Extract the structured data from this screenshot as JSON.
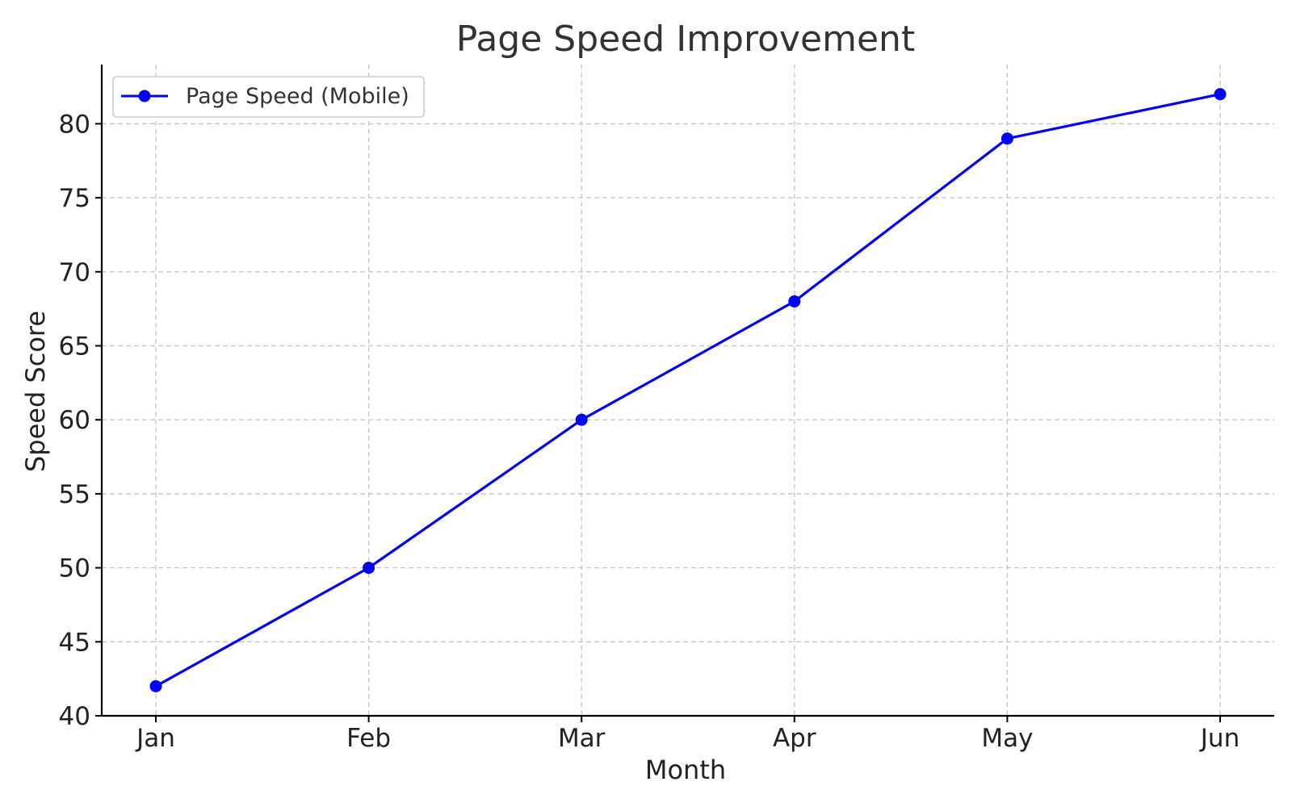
{
  "chart_data": {
    "type": "line",
    "title": "Page Speed Improvement",
    "xlabel": "Month",
    "ylabel": "Speed Score",
    "categories": [
      "Jan",
      "Feb",
      "Mar",
      "Apr",
      "May",
      "Jun"
    ],
    "series": [
      {
        "name": "Page Speed (Mobile)",
        "values": [
          42,
          50,
          60,
          68,
          79,
          82
        ],
        "color": "#0000ff",
        "marker": "circle"
      }
    ],
    "ylim": [
      40,
      84
    ],
    "yticks": [
      40,
      45,
      50,
      55,
      60,
      65,
      70,
      75,
      80
    ],
    "grid": true,
    "legend_position": "top-left"
  }
}
